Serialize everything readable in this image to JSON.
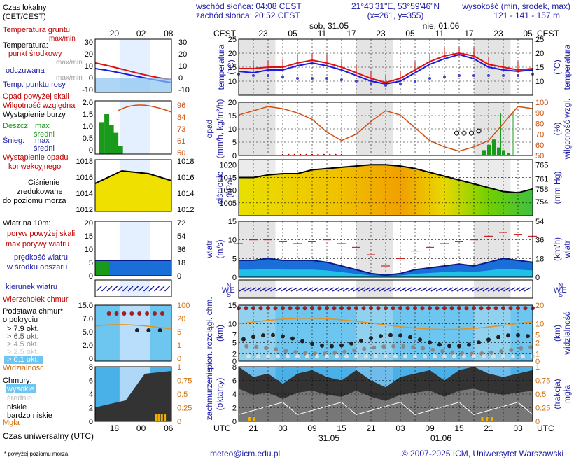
{
  "header": {
    "sunrise": "wschód słońca: 04:08 CEST",
    "sunset": "zachód słońca: 20:52 CEST",
    "coords": "21°43'31\"E, 53°59'46\"N",
    "grid": "(x=261, y=355)",
    "height_label": "wysokość (min, środek, max)",
    "height_values": "121 - 141 - 157 m"
  },
  "legend": {
    "local_time": "Czas lokalny",
    "local_time_zone": "(CET/CEST)",
    "soil_temp": "Temperatura gruntu",
    "maxmin": "max/min",
    "temperature": "Temperatura:",
    "mid_point": "punkt środkowy",
    "maxmin2": "max/min",
    "perceived": "odczuwana",
    "maxmin3": "max/min",
    "dew_point": "Temp. punktu rosy",
    "precip_threshold": "Opad powyżej skali",
    "humidity": "Wilgotność względna",
    "storm": "Wystąpienie burzy",
    "rain": "Deszcz:",
    "max": "max",
    "mean": "średni",
    "snow": "Śnieg:",
    "max2": "max",
    "mean2": "średni",
    "precip_occurrence_1": "Wystąpienie opadu",
    "precip_occurrence_2": "konwekcyjnego",
    "pressure_1": "Ciśnienie",
    "pressure_2": "zredukowane",
    "pressure_3": "do poziomu morza",
    "wind_10m": "Wiatr na 10m:",
    "gust_above": "poryw powyżej skali",
    "max_gust": "max porywy wiatru",
    "wind_speed_1": "prędkość wiatru",
    "wind_speed_2": "w środku obszaru",
    "wind_dir": "kierunek wiatru",
    "cloud_top": "Wierzchołek chmur",
    "cloud_base_1": "Podstawa chmur*",
    "cloud_base_2": "o pokryciu",
    "okt": [
      "> 7.9 okt.",
      "> 6.5 okt.",
      "> 4.5 okt.",
      "> 2.5 okt.",
      "> 0.1 okt."
    ],
    "visibility": "Widzialność",
    "clouds": "Chmury:",
    "high": "wysokie",
    "mid": "średnie",
    "low": "niskie",
    "very_low": "bardzo niskie",
    "fog": "Mgła",
    "utc": "Czas uniwersalny (UTC)",
    "footnote": "* powyżej poziomu morza",
    "local_ticks": [
      "20",
      "02",
      "08"
    ],
    "utc_ticks": [
      "18",
      "00",
      "06"
    ]
  },
  "main": {
    "cest": "CEST",
    "utc": "UTC",
    "day1": "sob, 31.05",
    "day2": "nie, 01.06",
    "date1": "31.05",
    "date2": "01.06",
    "cest_ticks": [
      "23",
      "05",
      "11",
      "17",
      "23",
      "05",
      "11",
      "17",
      "23",
      "05"
    ],
    "utc_ticks": [
      "21",
      "03",
      "09",
      "15",
      "21",
      "03",
      "09",
      "15",
      "21",
      "03"
    ]
  },
  "axes": {
    "temp_label": "temperatura",
    "temp_unit": "(°C)",
    "precip_label": "opad",
    "precip_unit": "(mm/h, kg/m²/h)",
    "humidity_label": "wilgotność wzgl.",
    "humidity_unit": "(%)",
    "pressure_label": "ciśnienie",
    "pressure_unit_hpa": "(hPa)",
    "pressure_unit_mmhg": "(mm Hg)",
    "wind_label": "wiatr",
    "wind_unit_ms": "(m/s)",
    "wind_unit_kmh": "(km/h)",
    "cloud_label_1": "pion. rozciągł. chm.",
    "cloud_label_2": "(km)",
    "vis_label": "widzialność",
    "vis_unit": "(km)",
    "cover_label_1": "zachmurzenie",
    "cover_label_2": "(oktanty)",
    "fog_label_1": "(frakcja)",
    "fog_label_2": "mgła",
    "compass_n": "N",
    "compass_w": "W",
    "compass_e": "E",
    "compass_s": "S"
  },
  "footer": {
    "email": "meteo@icm.edu.pl",
    "copyright": "© 2007-2025 ICM, Uniwersytet Warszawski"
  },
  "chart_data": {
    "type": "line",
    "x_hours": [
      0,
      3,
      6,
      9,
      12,
      15,
      18,
      21,
      24,
      27,
      30,
      33,
      36,
      39,
      42,
      45,
      48,
      51,
      54,
      57,
      60
    ],
    "x_start": "31.05 18 UTC",
    "temperature": {
      "ylim": [
        5,
        25
      ],
      "ticks": [
        10,
        15,
        20,
        25
      ],
      "mid": [
        14.5,
        14.5,
        15,
        15,
        16.5,
        17.5,
        16.5,
        15,
        13,
        11,
        9.5,
        11,
        14,
        17,
        19,
        20,
        19,
        16,
        15,
        14,
        14.5
      ],
      "max": [
        15,
        15.5,
        15.5,
        16,
        17.5,
        18,
        17.5,
        16,
        14,
        12,
        10,
        12,
        15,
        18,
        20,
        20.5,
        20,
        17,
        16,
        15,
        15.5
      ],
      "perceived": [
        13.5,
        13,
        14,
        14,
        15.5,
        16.5,
        15.5,
        14,
        12,
        10,
        9,
        10,
        13,
        16,
        18,
        19.5,
        18,
        15,
        14,
        13.5,
        14
      ],
      "dew_point": [
        12.5,
        12,
        12,
        11.5,
        11,
        11,
        11,
        10.5,
        10,
        9,
        8.5,
        9,
        10,
        11,
        11.5,
        12,
        12,
        12,
        12,
        12,
        12.5
      ]
    },
    "precipitation": {
      "ylim": [
        0,
        20
      ],
      "ticks": [
        0,
        5,
        10,
        15,
        20
      ],
      "humidity_ylim": [
        50,
        100
      ],
      "humidity_ticks": [
        50,
        60,
        70,
        80,
        90,
        100
      ],
      "humidity": [
        88,
        92,
        96,
        94,
        90,
        84,
        72,
        64,
        70,
        82,
        92,
        88,
        76,
        64,
        58,
        54,
        58,
        64,
        80,
        96,
        94
      ]
    },
    "pressure": {
      "ylim": [
        1000,
        1022
      ],
      "ticks": [
        1005,
        1010,
        1015,
        1020
      ],
      "mmhg_ticks": [
        754,
        758,
        761,
        765
      ],
      "values": [
        1015,
        1015,
        1016,
        1016.5,
        1016.5,
        1018,
        1018.5,
        1019,
        1019.5,
        1020,
        1020,
        1019.5,
        1018.5,
        1017,
        1015.5,
        1014,
        1012.5,
        1011,
        1009.5,
        1009,
        1010.5
      ]
    },
    "wind": {
      "ylim": [
        0,
        15
      ],
      "ticks": [
        0,
        5,
        10,
        15
      ],
      "kmh_ticks": [
        0,
        18,
        36,
        54
      ],
      "speed": [
        4.5,
        4.5,
        5,
        4.5,
        4.5,
        4.5,
        4,
        3,
        2,
        1,
        0.5,
        1,
        2,
        2.5,
        3,
        3.5,
        3,
        4,
        5,
        4.5,
        4
      ],
      "gusts": [
        9,
        10,
        10,
        9.5,
        9,
        9.5,
        10,
        9,
        8,
        6,
        3,
        5,
        7,
        8,
        9,
        9.5,
        10,
        11,
        12,
        11.5,
        11
      ]
    },
    "cloud": {
      "ylim": [
        0,
        15
      ],
      "ticks": [
        0,
        2,
        5,
        7,
        10,
        15
      ],
      "vis_ticks": [
        0,
        1,
        2,
        5,
        10,
        20
      ],
      "cloud_top": [
        14.5,
        14.5,
        14.5,
        14.5,
        14.5,
        14.5,
        14.5,
        14.5,
        14.5,
        14.5,
        14.5,
        14.5,
        14.5,
        14.5,
        14.5,
        14.5,
        14.5,
        14.5,
        14.5,
        14.5,
        14.5
      ]
    },
    "cover": {
      "ylim": [
        0,
        8
      ],
      "ticks": [
        0,
        2,
        4,
        6,
        8
      ],
      "fog_ticks": [
        0,
        0.25,
        0.5,
        0.75,
        1
      ],
      "total": [
        8,
        6.5,
        7,
        5.5,
        7,
        7.5,
        6.5,
        6,
        7.5,
        6,
        5,
        6.5,
        7,
        7.5,
        6,
        7.5,
        8,
        7,
        6.5,
        7,
        7.5
      ]
    }
  }
}
